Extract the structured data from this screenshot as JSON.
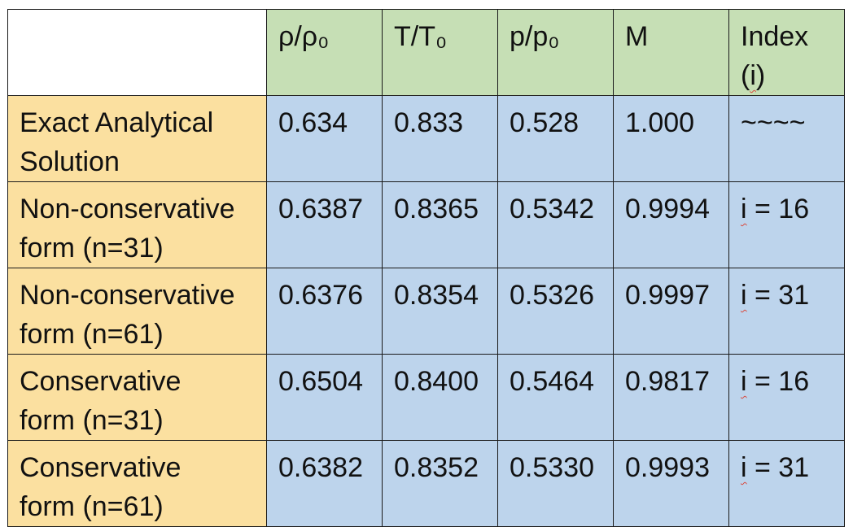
{
  "table": {
    "headers": [
      "ρ/ρ₀",
      "T/T₀",
      "p/p₀",
      "M"
    ],
    "index_header": {
      "word": "Index",
      "paren_open": "(",
      "letter": "i",
      "paren_close": ")"
    },
    "rows": [
      {
        "label_line1": "Exact Analytical",
        "label_line2": "Solution",
        "values": [
          "0.634",
          "0.833",
          "0.528",
          "1.000"
        ],
        "index_prefix": "",
        "index_rest": "~~~~"
      },
      {
        "label_line1": "Non-conservative",
        "label_line2": "form (n=31)",
        "values": [
          "0.6387",
          "0.8365",
          "0.5342",
          "0.9994"
        ],
        "index_prefix": "i",
        "index_rest": " = 16"
      },
      {
        "label_line1": "Non-conservative",
        "label_line2": "form (n=61)",
        "values": [
          "0.6376",
          "0.8354",
          "0.5326",
          "0.9997"
        ],
        "index_prefix": "i",
        "index_rest": " = 31"
      },
      {
        "label_line1": "Conservative",
        "label_line2": "form (n=31)",
        "values": [
          "0.6504",
          "0.8400",
          "0.5464",
          "0.9817"
        ],
        "index_prefix": "i",
        "index_rest": " = 16"
      },
      {
        "label_line1": "Conservative",
        "label_line2": "form (n=61)",
        "values": [
          "0.6382",
          "0.8352",
          "0.5330",
          "0.9993"
        ],
        "index_prefix": "i",
        "index_rest": " = 31"
      }
    ]
  },
  "colors": {
    "header_fill": "#c6dfb5",
    "label_fill": "#fbe0a0",
    "value_fill": "#bdd4ec",
    "spellcheck_underline": "#d94a3f"
  }
}
